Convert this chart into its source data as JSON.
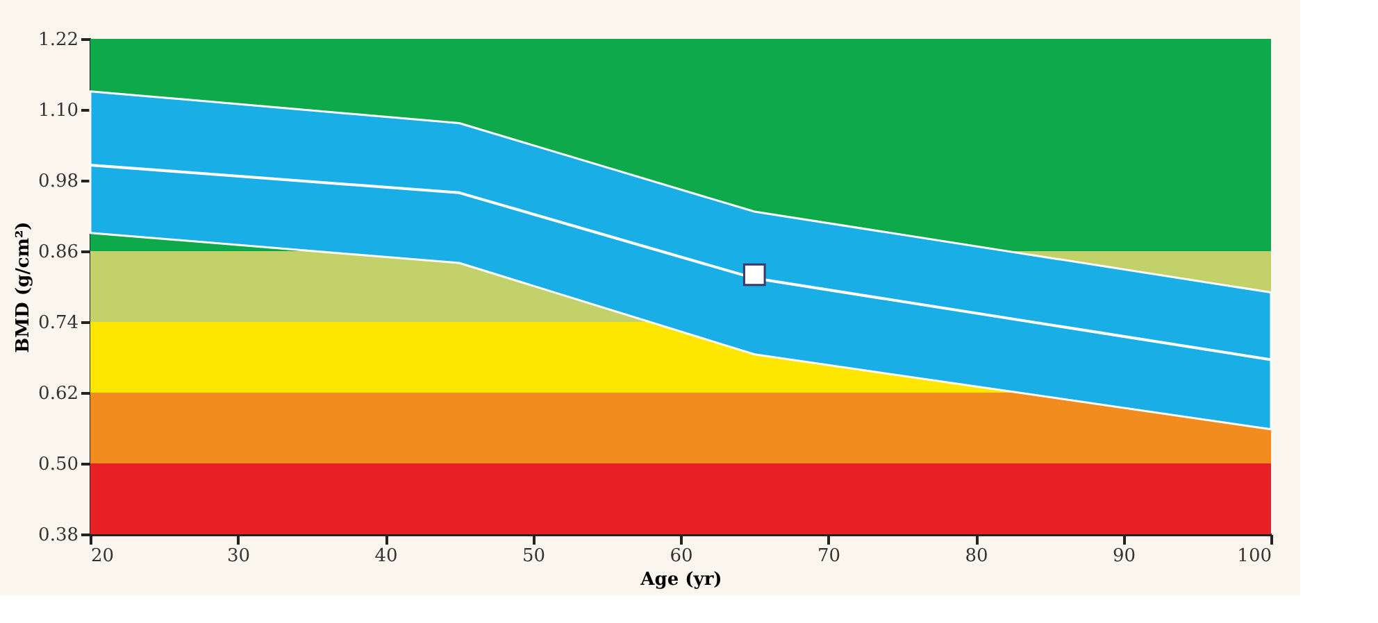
{
  "chart_data": {
    "type": "line",
    "xlabel": "Age (yr)",
    "ylabel": "BMD (g/cm²)",
    "xlim": [
      20,
      100
    ],
    "xticks": [
      20,
      30,
      40,
      50,
      60,
      70,
      80,
      90,
      100
    ],
    "ylim": [
      0.38,
      1.22
    ],
    "yticks": [
      0.38,
      {
        "value": 0.5,
        "label": "0.50"
      },
      0.62,
      0.74,
      0.86,
      0.98,
      {
        "value": 1.1,
        "label": "1.10"
      },
      1.22
    ],
    "grid": false,
    "line_style": "solid",
    "bands": [
      {
        "axis": "y",
        "from": 0.38,
        "to": 0.5,
        "color": "#e62025"
      },
      {
        "axis": "y",
        "from": 0.5,
        "to": 0.62,
        "color": "#f28c1e"
      },
      {
        "axis": "y",
        "from": 0.62,
        "to": 0.74,
        "color": "#fde700"
      },
      {
        "axis": "y",
        "from": 0.74,
        "to": 0.86,
        "color": "#c2d16a"
      },
      {
        "axis": "y",
        "from": 0.86,
        "to": 1.22,
        "color": "#0ea94a"
      }
    ],
    "series": [
      {
        "type": "line",
        "color": "#ffffff",
        "colors": [
          "#1aaee6",
          "#1aaee6",
          "#1aaee6",
          "#1aaee6"
        ],
        "x": [
          20,
          45,
          65,
          100
        ],
        "values": [
          1.006,
          0.959,
          0.814,
          0.676
        ],
        "lower": [
          0.891,
          0.84,
          0.685,
          0.558
        ],
        "upper": [
          1.131,
          1.077,
          0.927,
          0.79
        ]
      },
      {
        "type": "scatter",
        "color": "#ffffff",
        "marker": "square",
        "x": [
          65
        ],
        "values": [
          0.82
        ]
      }
    ]
  }
}
